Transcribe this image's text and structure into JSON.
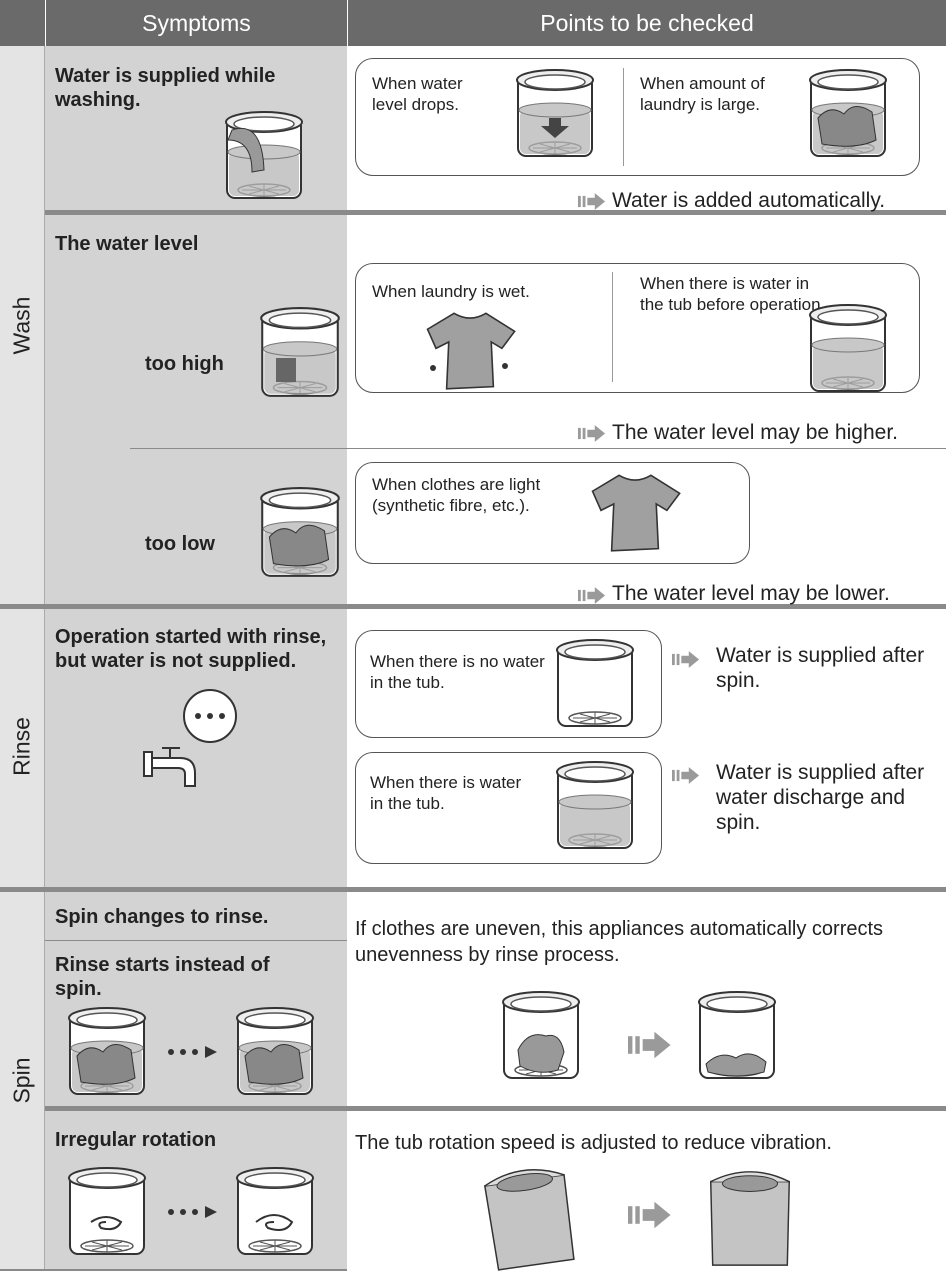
{
  "header": {
    "symptoms": "Symptoms",
    "points": "Points to be checked"
  },
  "wash": {
    "label": "Wash",
    "supplied": {
      "symptom": "Water is supplied while washing.",
      "checks": [
        "When water level drops.",
        "When amount of laundry is large."
      ],
      "result": "Water is added automatically."
    },
    "level": {
      "symptom": "The water level",
      "high": {
        "label": "too high",
        "checks": [
          "When laundry is wet.",
          "When there is water in the tub before operation."
        ],
        "result": "The water level may be higher."
      },
      "low": {
        "label": "too low",
        "checks": [
          "When clothes are light (synthetic fibre, etc.)."
        ],
        "result": "The water level may be lower."
      }
    }
  },
  "rinse": {
    "label": "Rinse",
    "symptom": "Operation started with rinse, but water is not supplied.",
    "cases": [
      {
        "condition": "When there is no water in the tub.",
        "result": "Water is supplied after spin."
      },
      {
        "condition": "When there is water in the tub.",
        "result": "Water is supplied after water discharge and spin."
      }
    ]
  },
  "spin": {
    "label": "Spin",
    "uneven": {
      "symptoms": [
        "Spin changes to rinse.",
        "Rinse starts instead of spin."
      ],
      "point": "If clothes are uneven, this appliances automatically corrects unevenness by rinse process."
    },
    "irregular": {
      "symptom": "Irregular rotation",
      "point": "The tub rotation speed is adjusted to reduce vibration."
    }
  }
}
